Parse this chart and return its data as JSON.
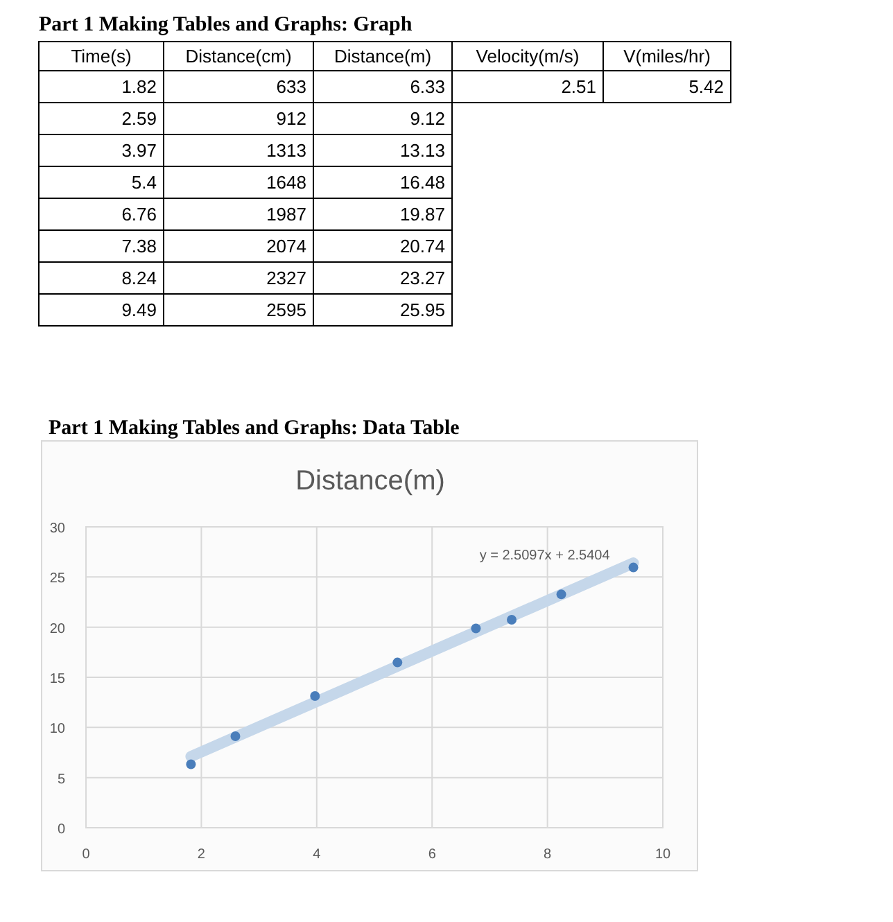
{
  "chart_data": [
    {
      "type": "other",
      "title": "Part 1 Making Tables and Graphs: Graph",
      "categories": [
        "Time(s)",
        "Distance(cm)",
        "Distance(m)",
        "Velocity(m/s)",
        "V(miles/hr)"
      ],
      "cells": [
        [
          "1.82",
          "633",
          "6.33",
          "2.51",
          "5.42"
        ],
        [
          "2.59",
          "912",
          "9.12",
          null,
          null
        ],
        [
          "3.97",
          "1313",
          "13.13",
          null,
          null
        ],
        [
          "5.4",
          "1648",
          "16.48",
          null,
          null
        ],
        [
          "6.76",
          "1987",
          "19.87",
          null,
          null
        ],
        [
          "7.38",
          "2074",
          "20.74",
          null,
          null
        ],
        [
          "8.24",
          "2327",
          "23.27",
          null,
          null
        ],
        [
          "9.49",
          "2595",
          "25.95",
          null,
          null
        ]
      ]
    },
    {
      "type": "scatter",
      "title": "Part 1 Making Tables and Graphs: Data Table",
      "subtitle": "Distance(m)",
      "x": [
        1.82,
        2.59,
        3.97,
        5.4,
        6.76,
        7.38,
        8.24,
        9.49
      ],
      "series": [
        {
          "color": "#4a7ebb",
          "marker": "circle",
          "values": [
            6.33,
            9.12,
            13.13,
            16.48,
            19.87,
            20.74,
            23.27,
            25.95
          ]
        },
        {
          "type": "line",
          "color": "#c5d7ea",
          "x": [
            1.82,
            9.49
          ],
          "values": [
            7.1,
            26.4
          ]
        }
      ],
      "annotations": [
        {
          "text": "y = 2.5097x + 2.5404",
          "x": 9.49,
          "y": 26.36
        }
      ],
      "xlim": [
        0,
        10
      ],
      "xticks": [
        0,
        2,
        4,
        6,
        8,
        10
      ],
      "ylim": [
        0,
        30
      ],
      "yticks": [
        0,
        5,
        10,
        15,
        20,
        25,
        30
      ],
      "grid": true
    }
  ]
}
